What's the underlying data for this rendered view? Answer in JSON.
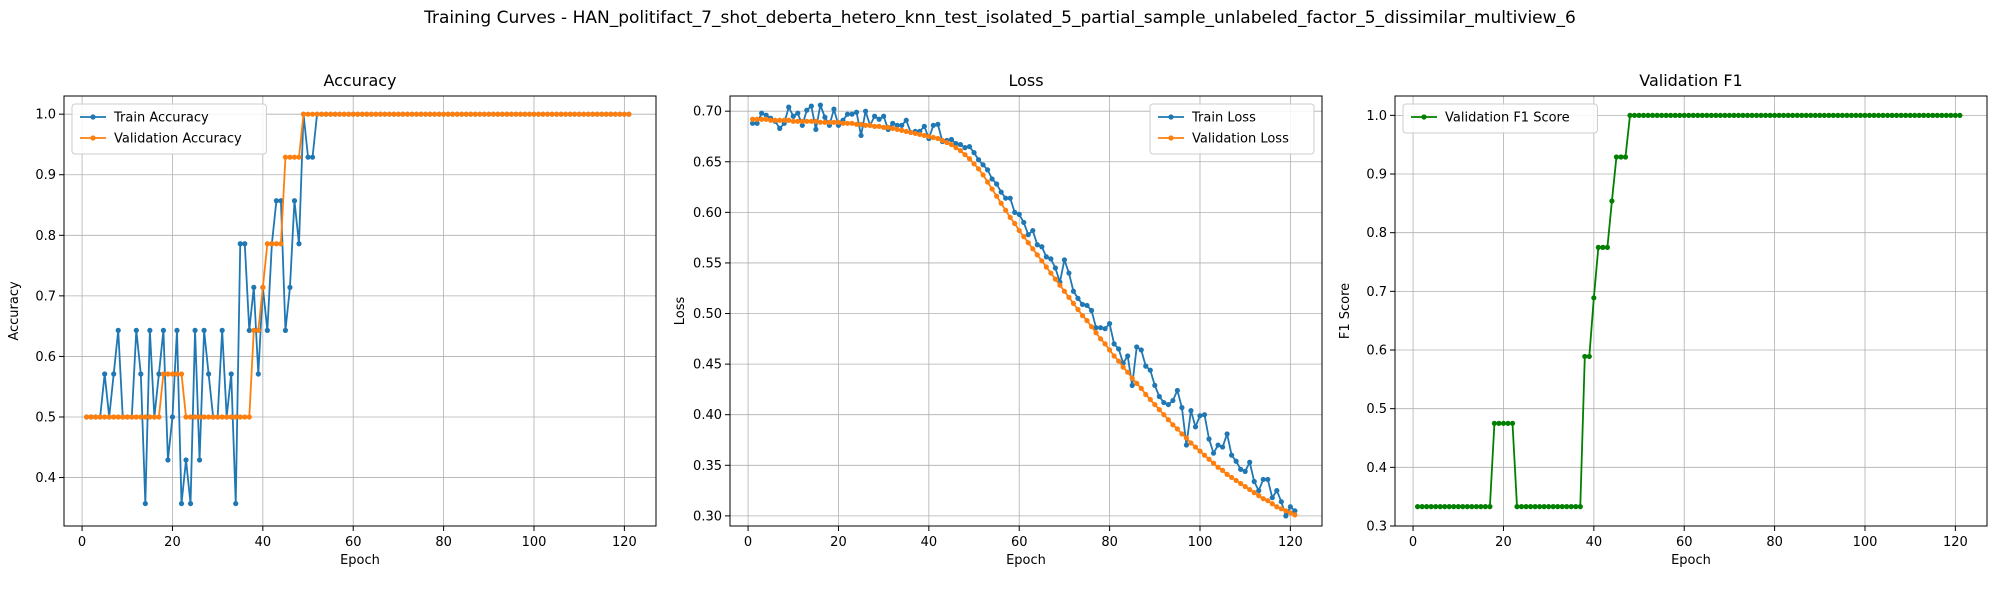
{
  "figure": {
    "suptitle": "Training Curves - HAN_politifact_7_shot_deberta_hetero_knn_test_isolated_5_partial_sample_unlabeled_factor_5_dissimilar_multiview_6"
  },
  "colors": {
    "blue": "#1f77b4",
    "orange": "#ff7f0e",
    "green": "#008000",
    "grid": "#b0b0b0"
  },
  "chart_data": [
    {
      "type": "line",
      "title": "Accuracy",
      "xlabel": "Epoch",
      "ylabel": "Accuracy",
      "xlim": [
        -4,
        127
      ],
      "ylim": [
        0.32,
        1.03
      ],
      "xticks": [
        0,
        20,
        40,
        60,
        80,
        100,
        120
      ],
      "yticks": [
        0.4,
        0.5,
        0.6,
        0.7,
        0.8,
        0.9,
        1.0
      ],
      "ytick_labels": [
        "0.4",
        "0.5",
        "0.6",
        "0.7",
        "0.8",
        "0.9",
        "1.0"
      ],
      "grid": true,
      "legend_loc": "upper-left",
      "x": [
        1,
        2,
        3,
        4,
        5,
        6,
        7,
        8,
        9,
        10,
        11,
        12,
        13,
        14,
        15,
        16,
        17,
        18,
        19,
        20,
        21,
        22,
        23,
        24,
        25,
        26,
        27,
        28,
        29,
        30,
        31,
        32,
        33,
        34,
        35,
        36,
        37,
        38,
        39,
        40,
        41,
        42,
        43,
        44,
        45,
        46,
        47,
        48,
        49,
        50,
        51,
        52,
        53,
        54,
        55,
        56,
        57,
        58,
        59,
        60,
        61,
        62,
        63,
        64,
        65,
        66,
        67,
        68,
        69,
        70,
        71,
        72,
        73,
        74,
        75,
        76,
        77,
        78,
        79,
        80,
        81,
        82,
        83,
        84,
        85,
        86,
        87,
        88,
        89,
        90,
        91,
        92,
        93,
        94,
        95,
        96,
        97,
        98,
        99,
        100,
        101,
        102,
        103,
        104,
        105,
        106,
        107,
        108,
        109,
        110,
        111,
        112,
        113,
        114,
        115,
        116,
        117,
        118,
        119,
        120,
        121
      ],
      "series": [
        {
          "name": "Train Accuracy",
          "color": "#1f77b4",
          "values": [
            0.5,
            0.5,
            0.5,
            0.5,
            0.571,
            0.5,
            0.571,
            0.643,
            0.5,
            0.5,
            0.5,
            0.643,
            0.571,
            0.357,
            0.643,
            0.5,
            0.571,
            0.643,
            0.429,
            0.5,
            0.643,
            0.357,
            0.429,
            0.357,
            0.643,
            0.429,
            0.643,
            0.571,
            0.5,
            0.5,
            0.643,
            0.5,
            0.571,
            0.357,
            0.786,
            0.786,
            0.643,
            0.714,
            0.571,
            0.714,
            0.643,
            0.786,
            0.857,
            0.857,
            0.643,
            0.714,
            0.857,
            0.786,
            1.0,
            0.929,
            0.929,
            1.0,
            1.0,
            1.0,
            1.0,
            1.0,
            1.0,
            1.0,
            1.0,
            1.0,
            1.0,
            1.0,
            1.0,
            1.0,
            1.0,
            1.0,
            1.0,
            1.0,
            1.0,
            1.0,
            1.0,
            1.0,
            1.0,
            1.0,
            1.0,
            1.0,
            1.0,
            1.0,
            1.0,
            1.0,
            1.0,
            1.0,
            1.0,
            1.0,
            1.0,
            1.0,
            1.0,
            1.0,
            1.0,
            1.0,
            1.0,
            1.0,
            1.0,
            1.0,
            1.0,
            1.0,
            1.0,
            1.0,
            1.0,
            1.0,
            1.0,
            1.0,
            1.0,
            1.0,
            1.0,
            1.0,
            1.0,
            1.0,
            1.0,
            1.0,
            1.0,
            1.0,
            1.0,
            1.0,
            1.0,
            1.0,
            1.0,
            1.0,
            1.0,
            1.0,
            1.0
          ]
        },
        {
          "name": "Validation Accuracy",
          "color": "#ff7f0e",
          "values": [
            0.5,
            0.5,
            0.5,
            0.5,
            0.5,
            0.5,
            0.5,
            0.5,
            0.5,
            0.5,
            0.5,
            0.5,
            0.5,
            0.5,
            0.5,
            0.5,
            0.5,
            0.571,
            0.571,
            0.571,
            0.571,
            0.571,
            0.5,
            0.5,
            0.5,
            0.5,
            0.5,
            0.5,
            0.5,
            0.5,
            0.5,
            0.5,
            0.5,
            0.5,
            0.5,
            0.5,
            0.5,
            0.643,
            0.643,
            0.714,
            0.786,
            0.786,
            0.786,
            0.786,
            0.929,
            0.929,
            0.929,
            0.929,
            1.0,
            1.0,
            1.0,
            1.0,
            1.0,
            1.0,
            1.0,
            1.0,
            1.0,
            1.0,
            1.0,
            1.0,
            1.0,
            1.0,
            1.0,
            1.0,
            1.0,
            1.0,
            1.0,
            1.0,
            1.0,
            1.0,
            1.0,
            1.0,
            1.0,
            1.0,
            1.0,
            1.0,
            1.0,
            1.0,
            1.0,
            1.0,
            1.0,
            1.0,
            1.0,
            1.0,
            1.0,
            1.0,
            1.0,
            1.0,
            1.0,
            1.0,
            1.0,
            1.0,
            1.0,
            1.0,
            1.0,
            1.0,
            1.0,
            1.0,
            1.0,
            1.0,
            1.0,
            1.0,
            1.0,
            1.0,
            1.0,
            1.0,
            1.0,
            1.0,
            1.0,
            1.0,
            1.0,
            1.0,
            1.0,
            1.0,
            1.0,
            1.0,
            1.0,
            1.0,
            1.0,
            1.0,
            1.0
          ]
        }
      ]
    },
    {
      "type": "line",
      "title": "Loss",
      "xlabel": "Epoch",
      "ylabel": "Loss",
      "xlim": [
        -4,
        127
      ],
      "ylim": [
        0.29,
        0.715
      ],
      "xticks": [
        0,
        20,
        40,
        60,
        80,
        100,
        120
      ],
      "yticks": [
        0.3,
        0.35,
        0.4,
        0.45,
        0.5,
        0.55,
        0.6,
        0.65,
        0.7
      ],
      "ytick_labels": [
        "0.30",
        "0.35",
        "0.40",
        "0.45",
        "0.50",
        "0.55",
        "0.60",
        "0.65",
        "0.70"
      ],
      "grid": true,
      "legend_loc": "upper-right",
      "x": [
        1,
        2,
        3,
        4,
        5,
        6,
        7,
        8,
        9,
        10,
        11,
        12,
        13,
        14,
        15,
        16,
        17,
        18,
        19,
        20,
        21,
        22,
        23,
        24,
        25,
        26,
        27,
        28,
        29,
        30,
        31,
        32,
        33,
        34,
        35,
        36,
        37,
        38,
        39,
        40,
        41,
        42,
        43,
        44,
        45,
        46,
        47,
        48,
        49,
        50,
        51,
        52,
        53,
        54,
        55,
        56,
        57,
        58,
        59,
        60,
        61,
        62,
        63,
        64,
        65,
        66,
        67,
        68,
        69,
        70,
        71,
        72,
        73,
        74,
        75,
        76,
        77,
        78,
        79,
        80,
        81,
        82,
        83,
        84,
        85,
        86,
        87,
        88,
        89,
        90,
        91,
        92,
        93,
        94,
        95,
        96,
        97,
        98,
        99,
        100,
        101,
        102,
        103,
        104,
        105,
        106,
        107,
        108,
        109,
        110,
        111,
        112,
        113,
        114,
        115,
        116,
        117,
        118,
        119,
        120,
        121
      ],
      "series": [
        {
          "name": "Train Loss",
          "color": "#1f77b4",
          "values": [
            0.688,
            0.688,
            0.698,
            0.696,
            0.693,
            0.69,
            0.683,
            0.688,
            0.704,
            0.695,
            0.698,
            0.686,
            0.701,
            0.705,
            0.682,
            0.706,
            0.694,
            0.686,
            0.702,
            0.686,
            0.691,
            0.697,
            0.697,
            0.699,
            0.676,
            0.7,
            0.686,
            0.695,
            0.692,
            0.695,
            0.682,
            0.688,
            0.686,
            0.686,
            0.691,
            0.679,
            0.68,
            0.68,
            0.685,
            0.673,
            0.686,
            0.687,
            0.67,
            0.671,
            0.672,
            0.668,
            0.667,
            0.664,
            0.665,
            0.659,
            0.652,
            0.647,
            0.642,
            0.633,
            0.628,
            0.62,
            0.614,
            0.614,
            0.6,
            0.598,
            0.59,
            0.578,
            0.582,
            0.568,
            0.566,
            0.556,
            0.554,
            0.545,
            0.531,
            0.553,
            0.54,
            0.522,
            0.515,
            0.509,
            0.508,
            0.503,
            0.486,
            0.486,
            0.485,
            0.49,
            0.47,
            0.465,
            0.451,
            0.458,
            0.429,
            0.467,
            0.464,
            0.448,
            0.444,
            0.429,
            0.418,
            0.412,
            0.41,
            0.414,
            0.424,
            0.407,
            0.37,
            0.404,
            0.388,
            0.399,
            0.4,
            0.376,
            0.362,
            0.37,
            0.368,
            0.381,
            0.36,
            0.354,
            0.346,
            0.344,
            0.353,
            0.334,
            0.325,
            0.336,
            0.336,
            0.318,
            0.325,
            0.314,
            0.3,
            0.309,
            0.305
          ]
        },
        {
          "name": "Validation Loss",
          "color": "#ff7f0e",
          "values": [
            0.692,
            0.692,
            0.692,
            0.692,
            0.691,
            0.691,
            0.691,
            0.691,
            0.691,
            0.69,
            0.69,
            0.69,
            0.69,
            0.69,
            0.69,
            0.689,
            0.689,
            0.689,
            0.689,
            0.689,
            0.688,
            0.688,
            0.688,
            0.687,
            0.687,
            0.686,
            0.686,
            0.685,
            0.685,
            0.684,
            0.684,
            0.683,
            0.682,
            0.681,
            0.68,
            0.679,
            0.678,
            0.677,
            0.676,
            0.675,
            0.674,
            0.673,
            0.671,
            0.669,
            0.667,
            0.664,
            0.661,
            0.657,
            0.653,
            0.648,
            0.643,
            0.637,
            0.63,
            0.623,
            0.616,
            0.609,
            0.602,
            0.595,
            0.589,
            0.582,
            0.576,
            0.57,
            0.564,
            0.558,
            0.552,
            0.546,
            0.54,
            0.534,
            0.528,
            0.522,
            0.516,
            0.51,
            0.504,
            0.498,
            0.493,
            0.487,
            0.481,
            0.475,
            0.47,
            0.464,
            0.458,
            0.453,
            0.447,
            0.442,
            0.436,
            0.431,
            0.426,
            0.42,
            0.415,
            0.41,
            0.405,
            0.4,
            0.395,
            0.39,
            0.386,
            0.381,
            0.377,
            0.372,
            0.368,
            0.364,
            0.36,
            0.356,
            0.352,
            0.348,
            0.345,
            0.341,
            0.338,
            0.335,
            0.332,
            0.329,
            0.326,
            0.323,
            0.32,
            0.317,
            0.315,
            0.312,
            0.309,
            0.307,
            0.305,
            0.303,
            0.301
          ]
        }
      ]
    },
    {
      "type": "line",
      "title": "Validation F1",
      "xlabel": "Epoch",
      "ylabel": "F1 Score",
      "xlim": [
        -4,
        127
      ],
      "ylim": [
        0.3,
        1.033
      ],
      "xticks": [
        0,
        20,
        40,
        60,
        80,
        100,
        120
      ],
      "yticks": [
        0.3,
        0.4,
        0.5,
        0.6,
        0.7,
        0.8,
        0.9,
        1.0
      ],
      "ytick_labels": [
        "0.3",
        "0.4",
        "0.5",
        "0.6",
        "0.7",
        "0.8",
        "0.9",
        "1.0"
      ],
      "grid": true,
      "legend_loc": "upper-left",
      "x": [
        1,
        2,
        3,
        4,
        5,
        6,
        7,
        8,
        9,
        10,
        11,
        12,
        13,
        14,
        15,
        16,
        17,
        18,
        19,
        20,
        21,
        22,
        23,
        24,
        25,
        26,
        27,
        28,
        29,
        30,
        31,
        32,
        33,
        34,
        35,
        36,
        37,
        38,
        39,
        40,
        41,
        42,
        43,
        44,
        45,
        46,
        47,
        48,
        49,
        50,
        51,
        52,
        53,
        54,
        55,
        56,
        57,
        58,
        59,
        60,
        61,
        62,
        63,
        64,
        65,
        66,
        67,
        68,
        69,
        70,
        71,
        72,
        73,
        74,
        75,
        76,
        77,
        78,
        79,
        80,
        81,
        82,
        83,
        84,
        85,
        86,
        87,
        88,
        89,
        90,
        91,
        92,
        93,
        94,
        95,
        96,
        97,
        98,
        99,
        100,
        101,
        102,
        103,
        104,
        105,
        106,
        107,
        108,
        109,
        110,
        111,
        112,
        113,
        114,
        115,
        116,
        117,
        118,
        119,
        120,
        121
      ],
      "series": [
        {
          "name": "Validation F1 Score",
          "color": "#008000",
          "values": [
            0.333,
            0.333,
            0.333,
            0.333,
            0.333,
            0.333,
            0.333,
            0.333,
            0.333,
            0.333,
            0.333,
            0.333,
            0.333,
            0.333,
            0.333,
            0.333,
            0.333,
            0.475,
            0.475,
            0.475,
            0.475,
            0.475,
            0.333,
            0.333,
            0.333,
            0.333,
            0.333,
            0.333,
            0.333,
            0.333,
            0.333,
            0.333,
            0.333,
            0.333,
            0.333,
            0.333,
            0.333,
            0.589,
            0.589,
            0.689,
            0.775,
            0.775,
            0.775,
            0.854,
            0.929,
            0.929,
            0.929,
            1.0,
            1.0,
            1.0,
            1.0,
            1.0,
            1.0,
            1.0,
            1.0,
            1.0,
            1.0,
            1.0,
            1.0,
            1.0,
            1.0,
            1.0,
            1.0,
            1.0,
            1.0,
            1.0,
            1.0,
            1.0,
            1.0,
            1.0,
            1.0,
            1.0,
            1.0,
            1.0,
            1.0,
            1.0,
            1.0,
            1.0,
            1.0,
            1.0,
            1.0,
            1.0,
            1.0,
            1.0,
            1.0,
            1.0,
            1.0,
            1.0,
            1.0,
            1.0,
            1.0,
            1.0,
            1.0,
            1.0,
            1.0,
            1.0,
            1.0,
            1.0,
            1.0,
            1.0,
            1.0,
            1.0,
            1.0,
            1.0,
            1.0,
            1.0,
            1.0,
            1.0,
            1.0,
            1.0,
            1.0,
            1.0,
            1.0,
            1.0,
            1.0,
            1.0,
            1.0,
            1.0,
            1.0,
            1.0,
            1.0
          ]
        }
      ]
    }
  ]
}
